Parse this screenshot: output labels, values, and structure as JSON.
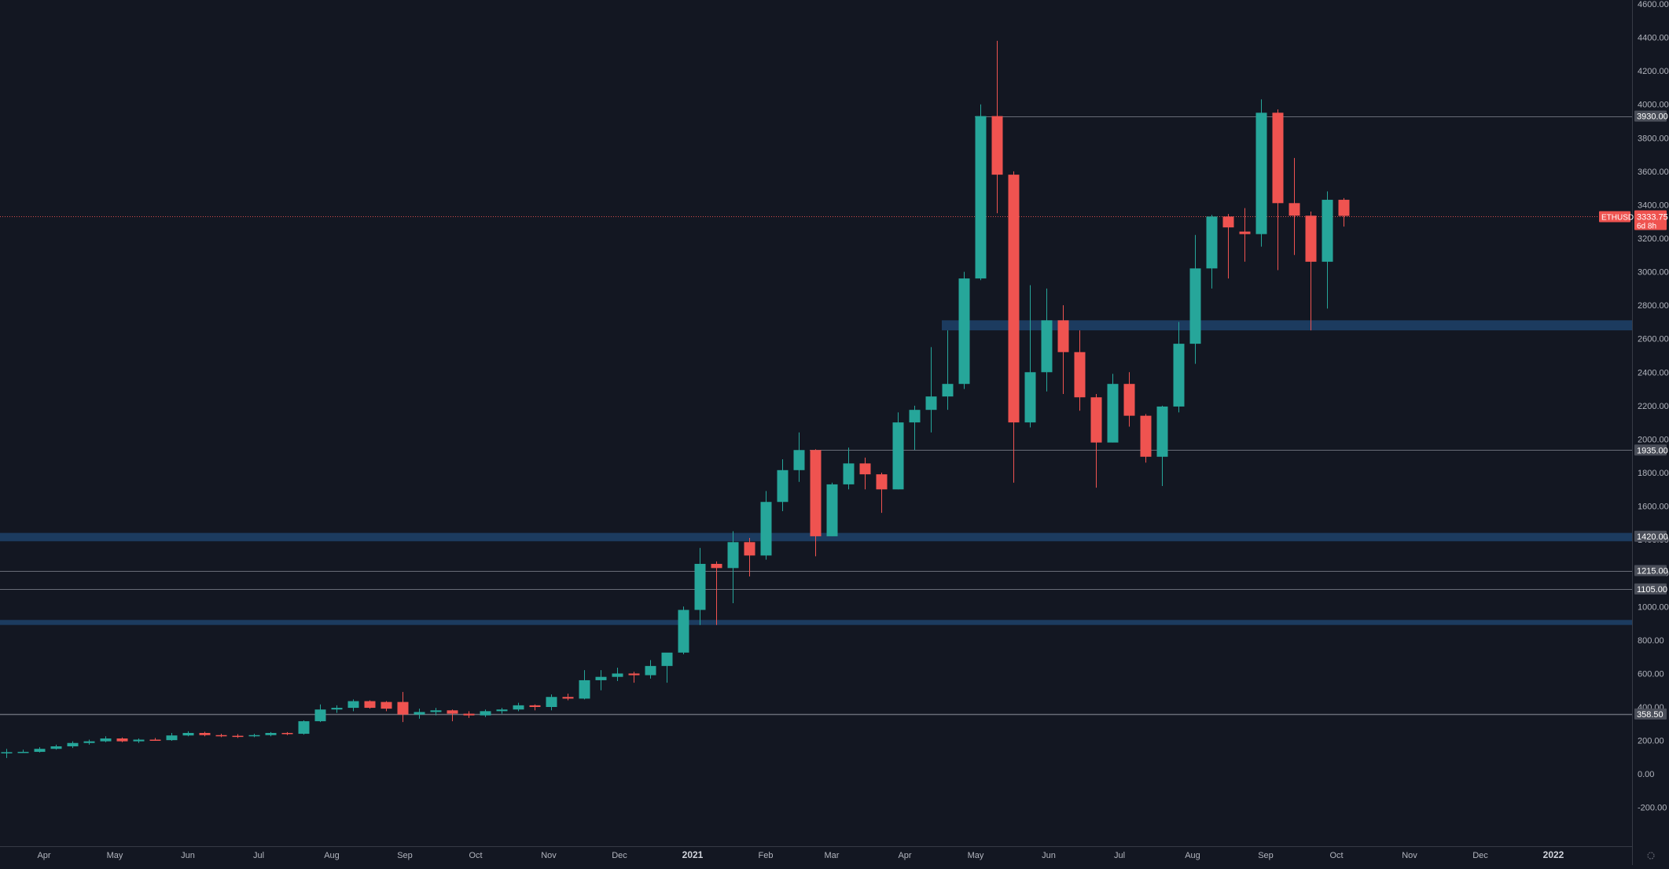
{
  "chart_data": {
    "type": "candlestick",
    "symbol": "ETHUSD",
    "timeframe": "weekly",
    "colors": {
      "background": "#131722",
      "up": "#26a69a",
      "down": "#ef5350",
      "zone": "#1e3f66",
      "level_line": "#787b86",
      "price_line": "#ef5350",
      "axis_text": "#b2b5be"
    },
    "y_axis": {
      "min": -300,
      "max": 4600,
      "ticks": [
        -200,
        0,
        200,
        400,
        600,
        800,
        1000,
        1200,
        1400,
        1600,
        1800,
        2000,
        2200,
        2400,
        2600,
        2800,
        3000,
        3200,
        3400,
        3600,
        3800,
        4000,
        4200,
        4400,
        4600
      ],
      "tick_labels": [
        "-200.00",
        "0.00",
        "200.00",
        "400.00",
        "600.00",
        "800.00",
        "1000.00",
        "1200.00",
        "1400.00",
        "1600.00",
        "1800.00",
        "2000.00",
        "2200.00",
        "2400.00",
        "2600.00",
        "2800.00",
        "3000.00",
        "3200.00",
        "3400.00",
        "3600.00",
        "3800.00",
        "4000.00",
        "4200.00",
        "4400.00",
        "4600.00"
      ]
    },
    "x_axis": {
      "start": "2020-03-16",
      "end": "2022-02-14",
      "ticks": [
        {
          "date": "2020-04-01",
          "label": "Apr",
          "bold": false
        },
        {
          "date": "2020-05-01",
          "label": "May",
          "bold": false
        },
        {
          "date": "2020-06-01",
          "label": "Jun",
          "bold": false
        },
        {
          "date": "2020-07-01",
          "label": "Jul",
          "bold": false
        },
        {
          "date": "2020-08-01",
          "label": "Aug",
          "bold": false
        },
        {
          "date": "2020-09-01",
          "label": "Sep",
          "bold": false
        },
        {
          "date": "2020-10-01",
          "label": "Oct",
          "bold": false
        },
        {
          "date": "2020-11-01",
          "label": "Nov",
          "bold": false
        },
        {
          "date": "2020-12-01",
          "label": "Dec",
          "bold": false
        },
        {
          "date": "2021-01-01",
          "label": "2021",
          "bold": true
        },
        {
          "date": "2021-02-01",
          "label": "Feb",
          "bold": false
        },
        {
          "date": "2021-03-01",
          "label": "Mar",
          "bold": false
        },
        {
          "date": "2021-04-01",
          "label": "Apr",
          "bold": false
        },
        {
          "date": "2021-05-01",
          "label": "May",
          "bold": false
        },
        {
          "date": "2021-06-01",
          "label": "Jun",
          "bold": false
        },
        {
          "date": "2021-07-01",
          "label": "Jul",
          "bold": false
        },
        {
          "date": "2021-08-01",
          "label": "Aug",
          "bold": false
        },
        {
          "date": "2021-09-01",
          "label": "Sep",
          "bold": false
        },
        {
          "date": "2021-10-01",
          "label": "Oct",
          "bold": false
        },
        {
          "date": "2021-11-01",
          "label": "Nov",
          "bold": false
        },
        {
          "date": "2021-12-01",
          "label": "Dec",
          "bold": false
        },
        {
          "date": "2022-01-01",
          "label": "2022",
          "bold": true
        }
      ]
    },
    "candles": [
      {
        "t": "2020-03-16",
        "o": 125,
        "h": 150,
        "l": 95,
        "c": 130
      },
      {
        "t": "2020-03-23",
        "o": 130,
        "h": 145,
        "l": 125,
        "c": 132
      },
      {
        "t": "2020-03-30",
        "o": 132,
        "h": 160,
        "l": 128,
        "c": 150
      },
      {
        "t": "2020-04-06",
        "o": 150,
        "h": 175,
        "l": 145,
        "c": 165
      },
      {
        "t": "2020-04-13",
        "o": 165,
        "h": 195,
        "l": 155,
        "c": 185
      },
      {
        "t": "2020-04-20",
        "o": 185,
        "h": 205,
        "l": 175,
        "c": 195
      },
      {
        "t": "2020-04-27",
        "o": 195,
        "h": 225,
        "l": 190,
        "c": 212
      },
      {
        "t": "2020-05-04",
        "o": 212,
        "h": 218,
        "l": 190,
        "c": 195
      },
      {
        "t": "2020-05-11",
        "o": 195,
        "h": 212,
        "l": 185,
        "c": 205
      },
      {
        "t": "2020-05-18",
        "o": 205,
        "h": 215,
        "l": 198,
        "c": 202
      },
      {
        "t": "2020-05-25",
        "o": 202,
        "h": 245,
        "l": 198,
        "c": 230
      },
      {
        "t": "2020-06-01",
        "o": 230,
        "h": 255,
        "l": 225,
        "c": 245
      },
      {
        "t": "2020-06-08",
        "o": 245,
        "h": 252,
        "l": 225,
        "c": 232
      },
      {
        "t": "2020-06-15",
        "o": 232,
        "h": 240,
        "l": 220,
        "c": 228
      },
      {
        "t": "2020-06-22",
        "o": 228,
        "h": 238,
        "l": 215,
        "c": 225
      },
      {
        "t": "2020-06-29",
        "o": 225,
        "h": 240,
        "l": 220,
        "c": 232
      },
      {
        "t": "2020-07-06",
        "o": 232,
        "h": 250,
        "l": 225,
        "c": 245
      },
      {
        "t": "2020-07-13",
        "o": 245,
        "h": 250,
        "l": 232,
        "c": 240
      },
      {
        "t": "2020-07-20",
        "o": 240,
        "h": 320,
        "l": 235,
        "c": 315
      },
      {
        "t": "2020-07-27",
        "o": 315,
        "h": 415,
        "l": 310,
        "c": 385
      },
      {
        "t": "2020-08-03",
        "o": 385,
        "h": 410,
        "l": 365,
        "c": 395
      },
      {
        "t": "2020-08-10",
        "o": 395,
        "h": 445,
        "l": 375,
        "c": 435
      },
      {
        "t": "2020-08-17",
        "o": 435,
        "h": 440,
        "l": 390,
        "c": 395
      },
      {
        "t": "2020-08-24",
        "o": 430,
        "h": 435,
        "l": 375,
        "c": 390
      },
      {
        "t": "2020-08-31",
        "o": 430,
        "h": 490,
        "l": 310,
        "c": 355
      },
      {
        "t": "2020-09-07",
        "o": 355,
        "h": 390,
        "l": 330,
        "c": 370
      },
      {
        "t": "2020-09-14",
        "o": 370,
        "h": 395,
        "l": 350,
        "c": 380
      },
      {
        "t": "2020-09-21",
        "o": 380,
        "h": 385,
        "l": 315,
        "c": 360
      },
      {
        "t": "2020-09-28",
        "o": 360,
        "h": 375,
        "l": 335,
        "c": 350
      },
      {
        "t": "2020-10-05",
        "o": 350,
        "h": 385,
        "l": 340,
        "c": 375
      },
      {
        "t": "2020-10-12",
        "o": 375,
        "h": 395,
        "l": 360,
        "c": 385
      },
      {
        "t": "2020-10-19",
        "o": 385,
        "h": 425,
        "l": 375,
        "c": 410
      },
      {
        "t": "2020-10-26",
        "o": 410,
        "h": 415,
        "l": 380,
        "c": 400
      },
      {
        "t": "2020-11-02",
        "o": 400,
        "h": 475,
        "l": 380,
        "c": 460
      },
      {
        "t": "2020-11-09",
        "o": 460,
        "h": 480,
        "l": 440,
        "c": 450
      },
      {
        "t": "2020-11-16",
        "o": 450,
        "h": 620,
        "l": 445,
        "c": 560
      },
      {
        "t": "2020-11-23",
        "o": 560,
        "h": 620,
        "l": 500,
        "c": 580
      },
      {
        "t": "2020-11-30",
        "o": 580,
        "h": 635,
        "l": 555,
        "c": 600
      },
      {
        "t": "2020-12-07",
        "o": 600,
        "h": 610,
        "l": 545,
        "c": 590
      },
      {
        "t": "2020-12-14",
        "o": 590,
        "h": 680,
        "l": 570,
        "c": 645
      },
      {
        "t": "2020-12-21",
        "o": 645,
        "h": 700,
        "l": 545,
        "c": 725
      },
      {
        "t": "2020-12-28",
        "o": 725,
        "h": 1000,
        "l": 715,
        "c": 980
      },
      {
        "t": "2021-01-04",
        "o": 980,
        "h": 1350,
        "l": 890,
        "c": 1255
      },
      {
        "t": "2021-01-11",
        "o": 1255,
        "h": 1270,
        "l": 890,
        "c": 1230
      },
      {
        "t": "2021-01-18",
        "o": 1230,
        "h": 1450,
        "l": 1020,
        "c": 1385
      },
      {
        "t": "2021-01-25",
        "o": 1385,
        "h": 1410,
        "l": 1180,
        "c": 1305
      },
      {
        "t": "2021-02-01",
        "o": 1305,
        "h": 1690,
        "l": 1280,
        "c": 1625
      },
      {
        "t": "2021-02-08",
        "o": 1625,
        "h": 1880,
        "l": 1570,
        "c": 1815
      },
      {
        "t": "2021-02-15",
        "o": 1815,
        "h": 2040,
        "l": 1745,
        "c": 1935
      },
      {
        "t": "2021-02-22",
        "o": 1935,
        "h": 1940,
        "l": 1300,
        "c": 1420
      },
      {
        "t": "2021-03-01",
        "o": 1420,
        "h": 1740,
        "l": 1420,
        "c": 1730
      },
      {
        "t": "2021-03-08",
        "o": 1730,
        "h": 1950,
        "l": 1700,
        "c": 1855
      },
      {
        "t": "2021-03-15",
        "o": 1855,
        "h": 1890,
        "l": 1700,
        "c": 1790
      },
      {
        "t": "2021-03-22",
        "o": 1790,
        "h": 1800,
        "l": 1560,
        "c": 1700
      },
      {
        "t": "2021-03-29",
        "o": 1700,
        "h": 2160,
        "l": 1700,
        "c": 2100
      },
      {
        "t": "2021-04-05",
        "o": 2100,
        "h": 2200,
        "l": 1935,
        "c": 2175
      },
      {
        "t": "2021-04-12",
        "o": 2175,
        "h": 2550,
        "l": 2040,
        "c": 2255
      },
      {
        "t": "2021-04-19",
        "o": 2255,
        "h": 2650,
        "l": 2175,
        "c": 2330
      },
      {
        "t": "2021-04-26",
        "o": 2330,
        "h": 3000,
        "l": 2300,
        "c": 2960
      },
      {
        "t": "2021-05-03",
        "o": 2960,
        "h": 4000,
        "l": 2950,
        "c": 3930
      },
      {
        "t": "2021-05-10",
        "o": 3930,
        "h": 4380,
        "l": 3350,
        "c": 3580
      },
      {
        "t": "2021-05-17",
        "o": 3580,
        "h": 3600,
        "l": 1740,
        "c": 2100
      },
      {
        "t": "2021-05-24",
        "o": 2100,
        "h": 2920,
        "l": 2070,
        "c": 2400
      },
      {
        "t": "2021-05-31",
        "o": 2400,
        "h": 2900,
        "l": 2285,
        "c": 2710
      },
      {
        "t": "2021-06-07",
        "o": 2710,
        "h": 2800,
        "l": 2270,
        "c": 2520
      },
      {
        "t": "2021-06-14",
        "o": 2520,
        "h": 2650,
        "l": 2170,
        "c": 2250
      },
      {
        "t": "2021-06-21",
        "o": 2250,
        "h": 2270,
        "l": 1710,
        "c": 1980
      },
      {
        "t": "2021-06-28",
        "o": 1980,
        "h": 2390,
        "l": 1980,
        "c": 2330
      },
      {
        "t": "2021-07-05",
        "o": 2330,
        "h": 2400,
        "l": 2075,
        "c": 2140
      },
      {
        "t": "2021-07-12",
        "o": 2140,
        "h": 2150,
        "l": 1860,
        "c": 1895
      },
      {
        "t": "2021-07-19",
        "o": 1895,
        "h": 2200,
        "l": 1720,
        "c": 2195
      },
      {
        "t": "2021-07-26",
        "o": 2195,
        "h": 2700,
        "l": 2160,
        "c": 2570
      },
      {
        "t": "2021-08-02",
        "o": 2570,
        "h": 3220,
        "l": 2450,
        "c": 3020
      },
      {
        "t": "2021-08-09",
        "o": 3020,
        "h": 3340,
        "l": 2900,
        "c": 3330
      },
      {
        "t": "2021-08-16",
        "o": 3330,
        "h": 3345,
        "l": 2960,
        "c": 3265
      },
      {
        "t": "2021-08-23",
        "o": 3240,
        "h": 3380,
        "l": 3060,
        "c": 3225
      },
      {
        "t": "2021-08-30",
        "o": 3225,
        "h": 4030,
        "l": 3150,
        "c": 3950
      },
      {
        "t": "2021-09-06",
        "o": 3950,
        "h": 3970,
        "l": 3010,
        "c": 3410
      },
      {
        "t": "2021-09-13",
        "o": 3410,
        "h": 3680,
        "l": 3100,
        "c": 3335
      },
      {
        "t": "2021-09-20",
        "o": 3335,
        "h": 3360,
        "l": 2650,
        "c": 3060
      },
      {
        "t": "2021-09-27",
        "o": 3060,
        "h": 3480,
        "l": 2780,
        "c": 3430
      },
      {
        "t": "2021-10-04",
        "o": 3430,
        "h": 3440,
        "l": 3270,
        "c": 3333.75
      }
    ],
    "zones": [
      {
        "low": 2650,
        "high": 2710,
        "from": "2021-04-19"
      },
      {
        "low": 1390,
        "high": 1440
      },
      {
        "low": 890,
        "high": 920
      }
    ],
    "levels": [
      {
        "value": 3930,
        "label": "3930.00",
        "from": "2021-05-03"
      },
      {
        "value": 1935,
        "label": "1935.00",
        "from": "2021-02-22"
      },
      {
        "value": 1215,
        "label": "1215.00"
      },
      {
        "value": 1105,
        "label": "1105.00"
      },
      {
        "value": 358.5,
        "label": "358.50"
      },
      {
        "value": 1420,
        "label": "1420.00",
        "line": false
      }
    ],
    "current_price": {
      "value": 3333.75,
      "label": "3333.75",
      "countdown": "6d 8h",
      "symbol_tag": "ETHUSD"
    }
  }
}
